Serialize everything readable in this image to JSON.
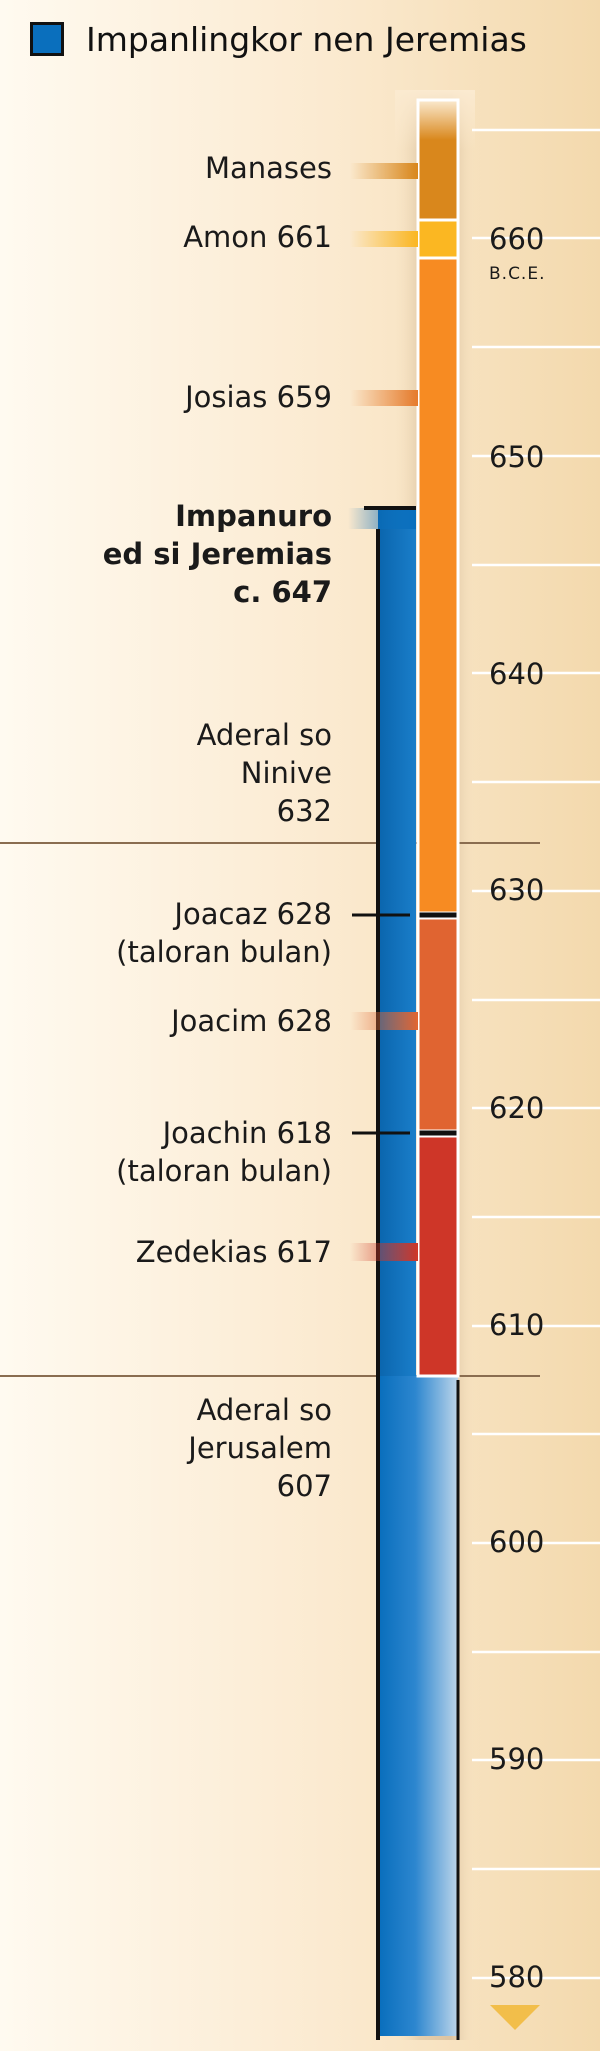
{
  "legend": {
    "label": "Impanlingkor nen Jeremias",
    "color": "#0a6fbd"
  },
  "labels": {
    "manases": "Manases",
    "amon": "Amon 661",
    "josias": "Josias 659",
    "call_1": "Impanuro",
    "call_2": "ed si Jeremias",
    "call_3": "c. 647",
    "nineveh_1": "Aderal so",
    "nineveh_2": "Ninive",
    "nineveh_3": "632",
    "joacaz_1": "Joacaz 628",
    "joacaz_2": "(taloran bulan)",
    "joacim": "Joacim 628",
    "joachin_1": "Joachin 618",
    "joachin_2": "(taloran bulan)",
    "zedekias": "Zedekias 617",
    "jerusalem_1": "Aderal so",
    "jerusalem_2": "Jerusalem",
    "jerusalem_3": "607"
  },
  "axis": {
    "era_label": "B.C.E.",
    "ticks": [
      "660",
      "650",
      "640",
      "630",
      "620",
      "610",
      "600",
      "590",
      "580"
    ]
  },
  "colors": {
    "manases": "#d9871c",
    "amon": "#fbb722",
    "josias": "#f78b22",
    "joacim": "#e06431",
    "zedekias": "#ce3628",
    "jeremiah": "#0a6fbd"
  }
}
